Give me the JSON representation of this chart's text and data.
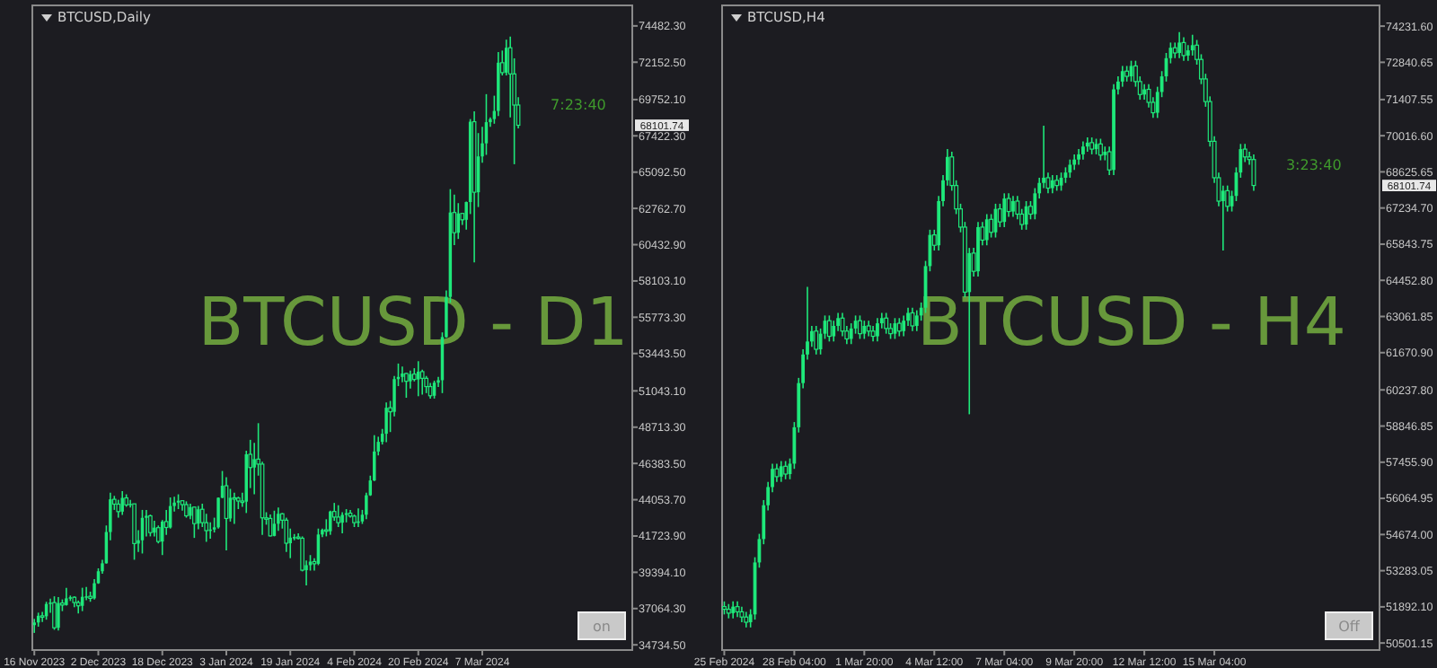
{
  "chart_data": [
    {
      "type": "candlestick",
      "title": "BTCUSD,Daily",
      "color": "#1ee87a",
      "annotations": [
        "BTCUSD - D1",
        "7:23:40",
        "68101.74",
        "on"
      ],
      "xlim": [
        "2023-11-15T12:00",
        "2024-04-13T12:00"
      ],
      "xticks": [
        {
          "value": "2023-11-16",
          "label": "16 Nov 2023"
        },
        {
          "value": "2023-12-02",
          "label": "2 Dec 2023"
        },
        {
          "value": "2023-12-18",
          "label": "18 Dec 2023"
        },
        {
          "value": "2024-01-03",
          "label": "3 Jan 2024"
        },
        {
          "value": "2024-01-19",
          "label": "19 Jan 2024"
        },
        {
          "value": "2024-02-04",
          "label": "4 Feb 2024"
        },
        {
          "value": "2024-02-20",
          "label": "20 Feb 2024"
        },
        {
          "value": "2024-03-07",
          "label": "7 Mar 2024"
        }
      ],
      "ylim": [
        34400,
        75800
      ],
      "yticks": [
        {
          "value": 74482.3,
          "label": "74482.30"
        },
        {
          "value": 72152.5,
          "label": "72152.50"
        },
        {
          "value": 69752.1,
          "label": "69752.10"
        },
        {
          "value": 67422.3,
          "label": "67422.30"
        },
        {
          "value": 65092.5,
          "label": "65092.50"
        },
        {
          "value": 62762.7,
          "label": "62762.70"
        },
        {
          "value": 60432.9,
          "label": "60432.90"
        },
        {
          "value": 58103.1,
          "label": "58103.10"
        },
        {
          "value": 55773.3,
          "label": "55773.30"
        },
        {
          "value": 53443.5,
          "label": "53443.50"
        },
        {
          "value": 51043.1,
          "label": "51043.10"
        },
        {
          "value": 48713.3,
          "label": "48713.30"
        },
        {
          "value": 46383.5,
          "label": "46383.50"
        },
        {
          "value": 44053.7,
          "label": "44053.70"
        },
        {
          "value": 41723.9,
          "label": "41723.90"
        },
        {
          "value": 39394.1,
          "label": "39394.10"
        },
        {
          "value": 37064.3,
          "label": "37064.30"
        },
        {
          "value": 34734.5,
          "label": "34734.50"
        }
      ],
      "x": [
        "2023-11-16",
        "2023-11-17",
        "2023-11-18",
        "2023-11-19",
        "2023-11-20",
        "2023-11-21",
        "2023-11-22",
        "2023-11-23",
        "2023-11-24",
        "2023-11-25",
        "2023-11-26",
        "2023-11-27",
        "2023-11-28",
        "2023-11-29",
        "2023-11-30",
        "2023-12-01",
        "2023-12-02",
        "2023-12-03",
        "2023-12-04",
        "2023-12-05",
        "2023-12-06",
        "2023-12-07",
        "2023-12-08",
        "2023-12-09",
        "2023-12-10",
        "2023-12-11",
        "2023-12-12",
        "2023-12-13",
        "2023-12-14",
        "2023-12-15",
        "2023-12-16",
        "2023-12-17",
        "2023-12-18",
        "2023-12-19",
        "2023-12-20",
        "2023-12-21",
        "2023-12-22",
        "2023-12-23",
        "2023-12-24",
        "2023-12-25",
        "2023-12-26",
        "2023-12-27",
        "2023-12-28",
        "2023-12-29",
        "2023-12-30",
        "2023-12-31",
        "2024-01-01",
        "2024-01-02",
        "2024-01-03",
        "2024-01-04",
        "2024-01-05",
        "2024-01-06",
        "2024-01-07",
        "2024-01-08",
        "2024-01-09",
        "2024-01-10",
        "2024-01-11",
        "2024-01-12",
        "2024-01-13",
        "2024-01-14",
        "2024-01-15",
        "2024-01-16",
        "2024-01-17",
        "2024-01-18",
        "2024-01-19",
        "2024-01-20",
        "2024-01-21",
        "2024-01-22",
        "2024-01-23",
        "2024-01-24",
        "2024-01-25",
        "2024-01-26",
        "2024-01-27",
        "2024-01-28",
        "2024-01-29",
        "2024-01-30",
        "2024-01-31",
        "2024-02-01",
        "2024-02-02",
        "2024-02-03",
        "2024-02-04",
        "2024-02-05",
        "2024-02-06",
        "2024-02-07",
        "2024-02-08",
        "2024-02-09",
        "2024-02-10",
        "2024-02-11",
        "2024-02-12",
        "2024-02-13",
        "2024-02-14",
        "2024-02-15",
        "2024-02-16",
        "2024-02-17",
        "2024-02-18",
        "2024-02-19",
        "2024-02-20",
        "2024-02-21",
        "2024-02-22",
        "2024-02-23",
        "2024-02-24",
        "2024-02-25",
        "2024-02-26",
        "2024-02-27",
        "2024-02-28",
        "2024-02-29",
        "2024-03-01",
        "2024-03-02",
        "2024-03-03",
        "2024-03-04",
        "2024-03-05",
        "2024-03-06",
        "2024-03-07",
        "2024-03-08",
        "2024-03-09",
        "2024-03-10",
        "2024-03-11",
        "2024-03-12",
        "2024-03-13",
        "2024-03-14",
        "2024-03-15",
        "2024-03-16"
      ],
      "ohlc": [
        [
          36000,
          36400,
          35500,
          36170
        ],
        [
          36170,
          36800,
          35900,
          36600
        ],
        [
          36600,
          36850,
          36200,
          36570
        ],
        [
          36570,
          37500,
          36350,
          37360
        ],
        [
          37360,
          37700,
          36800,
          37450
        ],
        [
          37450,
          37850,
          35700,
          35830
        ],
        [
          35830,
          37800,
          35650,
          37420
        ],
        [
          37420,
          37650,
          36900,
          37290
        ],
        [
          37290,
          38400,
          37250,
          37720
        ],
        [
          37720,
          37900,
          37550,
          37790
        ],
        [
          37790,
          37850,
          37150,
          37450
        ],
        [
          37450,
          37580,
          36750,
          37240
        ],
        [
          37240,
          38400,
          36900,
          37820
        ],
        [
          37820,
          38450,
          37600,
          37850
        ],
        [
          37850,
          38150,
          37500,
          37720
        ],
        [
          37720,
          38950,
          37650,
          38690
        ],
        [
          38690,
          39650,
          38650,
          39460
        ],
        [
          39460,
          40200,
          39300,
          39970
        ],
        [
          39970,
          42400,
          39950,
          41980
        ],
        [
          41980,
          44500,
          41450,
          44080
        ],
        [
          44080,
          44300,
          43400,
          43770
        ],
        [
          43770,
          44050,
          42900,
          43290
        ],
        [
          43290,
          44600,
          43080,
          44170
        ],
        [
          44170,
          44400,
          43600,
          43720
        ],
        [
          43720,
          44050,
          43550,
          43790
        ],
        [
          43790,
          43800,
          40200,
          41240
        ],
        [
          41240,
          42100,
          40700,
          41450
        ],
        [
          41450,
          43400,
          40600,
          42890
        ],
        [
          42890,
          43400,
          41700,
          43020
        ],
        [
          43020,
          43100,
          41700,
          41940
        ],
        [
          41940,
          42700,
          41700,
          42260
        ],
        [
          42260,
          42400,
          41250,
          41370
        ],
        [
          41370,
          42750,
          40500,
          42650
        ],
        [
          42650,
          43400,
          41800,
          42270
        ],
        [
          42270,
          44200,
          42200,
          43650
        ],
        [
          43650,
          44250,
          43300,
          43870
        ],
        [
          43870,
          44400,
          43450,
          43990
        ],
        [
          43990,
          44000,
          43350,
          43740
        ],
        [
          43740,
          43950,
          42900,
          43020
        ],
        [
          43020,
          43800,
          42800,
          43580
        ],
        [
          43580,
          43600,
          41600,
          42520
        ],
        [
          42520,
          43650,
          42150,
          43440
        ],
        [
          43440,
          43800,
          42300,
          42580
        ],
        [
          42580,
          43150,
          41350,
          42070
        ],
        [
          42070,
          42600,
          41550,
          42140
        ],
        [
          42140,
          42900,
          41950,
          42280
        ],
        [
          42280,
          44200,
          42200,
          44180
        ],
        [
          44180,
          45900,
          44150,
          44950
        ],
        [
          44950,
          45500,
          40800,
          42850
        ],
        [
          42850,
          44750,
          42650,
          44180
        ],
        [
          44180,
          44500,
          42500,
          44160
        ],
        [
          44160,
          44250,
          43450,
          43970
        ],
        [
          43970,
          44500,
          43600,
          43930
        ],
        [
          43930,
          47200,
          43200,
          46970
        ],
        [
          46970,
          47900,
          44800,
          46120
        ],
        [
          46120,
          47700,
          44400,
          46660
        ],
        [
          46660,
          48970,
          45600,
          46340
        ],
        [
          46340,
          46500,
          41800,
          42890
        ],
        [
          42890,
          43250,
          42450,
          42850
        ],
        [
          42850,
          43100,
          41700,
          41730
        ],
        [
          41730,
          43350,
          41700,
          42510
        ],
        [
          42510,
          43550,
          42050,
          43150
        ],
        [
          43150,
          43200,
          42200,
          42740
        ],
        [
          42740,
          42900,
          40700,
          41260
        ],
        [
          41260,
          42200,
          40300,
          41620
        ],
        [
          41620,
          41850,
          41450,
          41660
        ],
        [
          41660,
          41900,
          41500,
          41580
        ],
        [
          41580,
          41700,
          39450,
          39530
        ],
        [
          39530,
          40150,
          38550,
          39850
        ],
        [
          39850,
          40500,
          39500,
          40080
        ],
        [
          40080,
          40300,
          39500,
          39940
        ],
        [
          39940,
          42200,
          39850,
          41820
        ],
        [
          41820,
          42200,
          41650,
          42120
        ],
        [
          42120,
          42800,
          41700,
          42030
        ],
        [
          42030,
          43350,
          41800,
          43300
        ],
        [
          43300,
          43850,
          42700,
          42940
        ],
        [
          42940,
          43700,
          42300,
          42580
        ],
        [
          42580,
          43250,
          41900,
          43080
        ],
        [
          43080,
          43450,
          42600,
          43190
        ],
        [
          43190,
          43400,
          42900,
          43000
        ],
        [
          43000,
          43100,
          42300,
          42580
        ],
        [
          42580,
          43500,
          42300,
          42660
        ],
        [
          42660,
          43400,
          42500,
          43090
        ],
        [
          43090,
          44500,
          42800,
          44340
        ],
        [
          44340,
          45600,
          44300,
          45290
        ],
        [
          45290,
          48200,
          45250,
          47150
        ],
        [
          47150,
          48100,
          46900,
          47770
        ],
        [
          47770,
          48600,
          47600,
          48290
        ],
        [
          48290,
          50300,
          47750,
          49960
        ],
        [
          49960,
          50400,
          48400,
          49700
        ],
        [
          49700,
          52000,
          49400,
          51800
        ],
        [
          51800,
          52800,
          51350,
          51940
        ],
        [
          51940,
          52600,
          51600,
          52160
        ],
        [
          52160,
          52200,
          50600,
          51660
        ],
        [
          51660,
          52350,
          51200,
          52120
        ],
        [
          52120,
          52500,
          51650,
          51780
        ],
        [
          51780,
          52950,
          50700,
          52280
        ],
        [
          52280,
          52400,
          50800,
          51850
        ],
        [
          51850,
          52000,
          50900,
          51320
        ],
        [
          51320,
          51550,
          50550,
          50730
        ],
        [
          50730,
          51700,
          50550,
          51570
        ],
        [
          51570,
          51950,
          51300,
          51730
        ],
        [
          51730,
          54800,
          50900,
          54500
        ],
        [
          54500,
          57500,
          54450,
          57080
        ],
        [
          57080,
          64000,
          56700,
          62500
        ],
        [
          62500,
          63650,
          60400,
          61200
        ],
        [
          61200,
          63100,
          60800,
          62440
        ],
        [
          62440,
          62450,
          61700,
          62030
        ],
        [
          62030,
          63200,
          61400,
          63170
        ],
        [
          63170,
          68500,
          62400,
          68330
        ],
        [
          68330,
          69000,
          59300,
          63800
        ],
        [
          63800,
          67600,
          62850,
          66100
        ],
        [
          66100,
          68000,
          65700,
          66940
        ],
        [
          66940,
          70100,
          66200,
          68300
        ],
        [
          68300,
          68600,
          68000,
          68500
        ],
        [
          68500,
          70000,
          68200,
          69020
        ],
        [
          69020,
          72800,
          68700,
          72120
        ],
        [
          72120,
          72900,
          71300,
          71480
        ],
        [
          71480,
          73600,
          71300,
          73080
        ],
        [
          73080,
          73800,
          68600,
          71400
        ],
        [
          71400,
          72400,
          65600,
          69400
        ],
        [
          69400,
          69900,
          67900,
          68101.74
        ]
      ]
    },
    {
      "type": "candlestick",
      "title": "BTCUSD,H4",
      "color": "#1ee87a",
      "annotations": [
        "BTCUSD - H4",
        "3:23:40",
        "68101.74",
        "Off"
      ],
      "xlim": [
        "2024-02-25T10:00",
        "2024-03-21T11:00"
      ],
      "xticks": [
        {
          "value": "2024-02-25T12:00",
          "label": "25 Feb 2024"
        },
        {
          "value": "2024-02-28T04:00",
          "label": "28 Feb 04:00"
        },
        {
          "value": "2024-03-01T20:00",
          "label": "1 Mar 20:00"
        },
        {
          "value": "2024-03-04T12:00",
          "label": "4 Mar 12:00"
        },
        {
          "value": "2024-03-07T04:00",
          "label": "7 Mar 04:00"
        },
        {
          "value": "2024-03-09T20:00",
          "label": "9 Mar 20:00"
        },
        {
          "value": "2024-03-12T12:00",
          "label": "12 Mar 12:00"
        },
        {
          "value": "2024-03-15T04:00",
          "label": "15 Mar 04:00"
        }
      ],
      "ylim": [
        50230,
        75030
      ],
      "yticks": [
        {
          "value": 74231.6,
          "label": "74231.60"
        },
        {
          "value": 72840.65,
          "label": "72840.65"
        },
        {
          "value": 71407.55,
          "label": "71407.55"
        },
        {
          "value": 70016.6,
          "label": "70016.60"
        },
        {
          "value": 68625.65,
          "label": "68625.65"
        },
        {
          "value": 67234.7,
          "label": "67234.70"
        },
        {
          "value": 65843.75,
          "label": "65843.75"
        },
        {
          "value": 64452.8,
          "label": "64452.80"
        },
        {
          "value": 63061.85,
          "label": "63061.85"
        },
        {
          "value": 61670.9,
          "label": "61670.90"
        },
        {
          "value": 60237.8,
          "label": "60237.80"
        },
        {
          "value": 58846.85,
          "label": "58846.85"
        },
        {
          "value": 57455.9,
          "label": "57455.90"
        },
        {
          "value": 56064.95,
          "label": "56064.95"
        },
        {
          "value": 54674,
          "label": "54674.00"
        },
        {
          "value": 53283.05,
          "label": "53283.05"
        },
        {
          "value": 51892.1,
          "label": "51892.10"
        },
        {
          "value": 50501.15,
          "label": "50501.15"
        }
      ],
      "x": [
        "2024-02-25T12:00",
        "2024-02-25T16:00",
        "2024-02-25T20:00",
        "2024-02-26T00:00",
        "2024-02-26T04:00",
        "2024-02-26T08:00",
        "2024-02-26T12:00",
        "2024-02-26T16:00",
        "2024-02-26T20:00",
        "2024-02-27T00:00",
        "2024-02-27T04:00",
        "2024-02-27T08:00",
        "2024-02-27T12:00",
        "2024-02-27T16:00",
        "2024-02-27T20:00",
        "2024-02-28T00:00",
        "2024-02-28T04:00",
        "2024-02-28T08:00",
        "2024-02-28T12:00",
        "2024-02-28T16:00",
        "2024-02-28T20:00",
        "2024-02-29T00:00",
        "2024-02-29T04:00",
        "2024-02-29T08:00",
        "2024-02-29T12:00",
        "2024-02-29T16:00",
        "2024-02-29T20:00",
        "2024-03-01T00:00",
        "2024-03-01T04:00",
        "2024-03-01T08:00",
        "2024-03-01T12:00",
        "2024-03-01T16:00",
        "2024-03-01T20:00",
        "2024-03-02T00:00",
        "2024-03-02T04:00",
        "2024-03-02T08:00",
        "2024-03-02T12:00",
        "2024-03-02T16:00",
        "2024-03-02T20:00",
        "2024-03-03T00:00",
        "2024-03-03T04:00",
        "2024-03-03T08:00",
        "2024-03-03T12:00",
        "2024-03-03T16:00",
        "2024-03-03T20:00",
        "2024-03-04T00:00",
        "2024-03-04T04:00",
        "2024-03-04T08:00",
        "2024-03-04T12:00",
        "2024-03-04T16:00",
        "2024-03-04T20:00",
        "2024-03-05T00:00",
        "2024-03-05T04:00",
        "2024-03-05T08:00",
        "2024-03-05T12:00",
        "2024-03-05T16:00",
        "2024-03-05T20:00",
        "2024-03-06T00:00",
        "2024-03-06T04:00",
        "2024-03-06T08:00",
        "2024-03-06T12:00",
        "2024-03-06T16:00",
        "2024-03-06T20:00",
        "2024-03-07T00:00",
        "2024-03-07T04:00",
        "2024-03-07T08:00",
        "2024-03-07T12:00",
        "2024-03-07T16:00",
        "2024-03-07T20:00",
        "2024-03-08T00:00",
        "2024-03-08T04:00",
        "2024-03-08T08:00",
        "2024-03-08T12:00",
        "2024-03-08T16:00",
        "2024-03-08T20:00",
        "2024-03-09T00:00",
        "2024-03-09T04:00",
        "2024-03-09T08:00",
        "2024-03-09T12:00",
        "2024-03-09T16:00",
        "2024-03-09T20:00",
        "2024-03-10T00:00",
        "2024-03-10T04:00",
        "2024-03-10T08:00",
        "2024-03-10T12:00",
        "2024-03-10T16:00",
        "2024-03-10T20:00",
        "2024-03-11T00:00",
        "2024-03-11T04:00",
        "2024-03-11T08:00",
        "2024-03-11T12:00",
        "2024-03-11T16:00",
        "2024-03-11T20:00",
        "2024-03-12T00:00",
        "2024-03-12T04:00",
        "2024-03-12T08:00",
        "2024-03-12T12:00",
        "2024-03-12T16:00",
        "2024-03-12T20:00",
        "2024-03-13T00:00",
        "2024-03-13T04:00",
        "2024-03-13T08:00",
        "2024-03-13T12:00",
        "2024-03-13T16:00",
        "2024-03-13T20:00",
        "2024-03-14T00:00",
        "2024-03-14T04:00",
        "2024-03-14T08:00",
        "2024-03-14T12:00",
        "2024-03-14T16:00",
        "2024-03-14T20:00",
        "2024-03-15T00:00",
        "2024-03-15T04:00",
        "2024-03-15T08:00",
        "2024-03-15T12:00",
        "2024-03-15T16:00",
        "2024-03-15T20:00",
        "2024-03-16T00:00",
        "2024-03-16T04:00",
        "2024-03-16T08:00",
        "2024-03-16T12:00",
        "2024-03-16T16:00"
      ],
      "ohlc": [
        [
          51900,
          52100,
          51600,
          51800
        ],
        [
          51800,
          52000,
          51450,
          51650
        ],
        [
          51650,
          52100,
          51450,
          51900
        ],
        [
          51900,
          52100,
          51500,
          51700
        ],
        [
          51700,
          51900,
          51300,
          51500
        ],
        [
          51500,
          51700,
          51100,
          51300
        ],
        [
          51300,
          51800,
          51100,
          51600
        ],
        [
          51600,
          53800,
          51400,
          53600
        ],
        [
          53600,
          54700,
          53400,
          54500
        ],
        [
          54500,
          56000,
          54300,
          55800
        ],
        [
          55800,
          56700,
          55600,
          56500
        ],
        [
          56500,
          57400,
          56300,
          57200
        ],
        [
          57200,
          57400,
          56700,
          56900
        ],
        [
          56900,
          57500,
          56700,
          57300
        ],
        [
          57300,
          57500,
          56800,
          57000
        ],
        [
          57000,
          57600,
          56800,
          57400
        ],
        [
          57400,
          59000,
          57200,
          58800
        ],
        [
          58800,
          60700,
          58600,
          60500
        ],
        [
          60500,
          61800,
          60300,
          61600
        ],
        [
          61600,
          64200,
          61400,
          62100
        ],
        [
          62100,
          62700,
          61900,
          62500
        ],
        [
          62500,
          62700,
          61600,
          61800
        ],
        [
          61800,
          62600,
          61600,
          62400
        ],
        [
          62400,
          63100,
          62200,
          62900
        ],
        [
          62900,
          63100,
          62100,
          62300
        ],
        [
          62300,
          62900,
          62100,
          62700
        ],
        [
          62700,
          63200,
          62500,
          63000
        ],
        [
          63000,
          63200,
          62300,
          62500
        ],
        [
          62500,
          62700,
          62000,
          62200
        ],
        [
          62200,
          62800,
          62000,
          62600
        ],
        [
          62600,
          63100,
          62400,
          62900
        ],
        [
          62900,
          63100,
          62200,
          62400
        ],
        [
          62400,
          62900,
          62200,
          62700
        ],
        [
          62700,
          62900,
          62300,
          62500
        ],
        [
          62500,
          62700,
          62100,
          62300
        ],
        [
          62300,
          63000,
          62100,
          62800
        ],
        [
          62800,
          63200,
          62600,
          63000
        ],
        [
          63000,
          63200,
          62400,
          62600
        ],
        [
          62600,
          62800,
          62200,
          62400
        ],
        [
          62400,
          63000,
          62200,
          62800
        ],
        [
          62800,
          63000,
          62300,
          62500
        ],
        [
          62500,
          63100,
          62300,
          62900
        ],
        [
          62900,
          63400,
          62700,
          63200
        ],
        [
          63200,
          63400,
          62500,
          62700
        ],
        [
          62700,
          63300,
          62500,
          63100
        ],
        [
          63100,
          63600,
          62900,
          63400
        ],
        [
          63400,
          65200,
          63200,
          65000
        ],
        [
          65000,
          66400,
          64800,
          66200
        ],
        [
          66200,
          66400,
          65600,
          65800
        ],
        [
          65800,
          67700,
          65600,
          67500
        ],
        [
          67500,
          68500,
          67300,
          68300
        ],
        [
          68300,
          69500,
          68100,
          69200
        ],
        [
          69200,
          69400,
          67900,
          68100
        ],
        [
          68100,
          68300,
          67000,
          67200
        ],
        [
          67200,
          67400,
          66300,
          66500
        ],
        [
          66500,
          66700,
          63800,
          64000
        ],
        [
          64000,
          65700,
          59300,
          65500
        ],
        [
          65500,
          65700,
          64600,
          64800
        ],
        [
          64800,
          66700,
          64600,
          66500
        ],
        [
          66500,
          66700,
          65800,
          66000
        ],
        [
          66000,
          67000,
          65800,
          66800
        ],
        [
          66800,
          67000,
          66100,
          66300
        ],
        [
          66300,
          67400,
          66100,
          67200
        ],
        [
          67200,
          67400,
          66500,
          66700
        ],
        [
          66700,
          67800,
          66500,
          67600
        ],
        [
          67600,
          67800,
          66900,
          67100
        ],
        [
          67100,
          67700,
          66900,
          67500
        ],
        [
          67500,
          67700,
          66800,
          67000
        ],
        [
          67000,
          67200,
          66400,
          66600
        ],
        [
          66600,
          67500,
          66400,
          67300
        ],
        [
          67300,
          67500,
          66800,
          67000
        ],
        [
          67000,
          68000,
          66800,
          67800
        ],
        [
          67800,
          68400,
          67600,
          68200
        ],
        [
          68200,
          70400,
          68000,
          68400
        ],
        [
          68400,
          68600,
          67800,
          68000
        ],
        [
          68000,
          68500,
          67800,
          68300
        ],
        [
          68300,
          68500,
          67900,
          68100
        ],
        [
          68100,
          68600,
          67900,
          68400
        ],
        [
          68400,
          68800,
          68200,
          68600
        ],
        [
          68600,
          69100,
          68400,
          68900
        ],
        [
          68900,
          69300,
          68700,
          69100
        ],
        [
          69100,
          69500,
          68900,
          69300
        ],
        [
          69300,
          69800,
          69100,
          69600
        ],
        [
          69600,
          69950,
          69400,
          69750
        ],
        [
          69750,
          69950,
          69300,
          69500
        ],
        [
          69500,
          69900,
          69300,
          69700
        ],
        [
          69700,
          69900,
          69070,
          69270
        ],
        [
          69270,
          69600,
          69070,
          69400
        ],
        [
          69400,
          69600,
          68500,
          68700
        ],
        [
          68700,
          72000,
          68500,
          71800
        ],
        [
          71800,
          72300,
          71600,
          72100
        ],
        [
          72100,
          72700,
          71900,
          72500
        ],
        [
          72500,
          72700,
          72100,
          72300
        ],
        [
          72300,
          72900,
          72100,
          72700
        ],
        [
          72700,
          72900,
          71900,
          72100
        ],
        [
          72100,
          72300,
          71400,
          71600
        ],
        [
          71600,
          72000,
          71400,
          71800
        ],
        [
          71800,
          72000,
          71100,
          71300
        ],
        [
          71300,
          71500,
          70700,
          70900
        ],
        [
          70900,
          71900,
          70700,
          71700
        ],
        [
          71700,
          72500,
          71500,
          72300
        ],
        [
          72300,
          73200,
          72100,
          73000
        ],
        [
          73000,
          73600,
          72800,
          73400
        ],
        [
          73400,
          73600,
          73000,
          73200
        ],
        [
          73200,
          74000,
          73000,
          73600
        ],
        [
          73600,
          73800,
          72900,
          73100
        ],
        [
          73100,
          73500,
          72900,
          73300
        ],
        [
          73300,
          73900,
          73100,
          73500
        ],
        [
          73500,
          73700,
          72750,
          72950
        ],
        [
          72950,
          73150,
          72000,
          72200
        ],
        [
          72200,
          72400,
          71130,
          71330
        ],
        [
          71330,
          71530,
          69600,
          69800
        ],
        [
          69800,
          70000,
          68200,
          68400
        ],
        [
          68400,
          68600,
          67300,
          67500
        ],
        [
          67500,
          68100,
          65600,
          67900
        ],
        [
          67900,
          68100,
          67100,
          67300
        ],
        [
          67300,
          67900,
          67100,
          67700
        ],
        [
          67700,
          68800,
          67500,
          68600
        ],
        [
          68600,
          69700,
          68400,
          69500
        ],
        [
          69500,
          69700,
          69000,
          69200
        ],
        [
          69200,
          69400,
          68900,
          69100
        ],
        [
          69100,
          69300,
          67900,
          68101.74
        ]
      ]
    }
  ]
}
